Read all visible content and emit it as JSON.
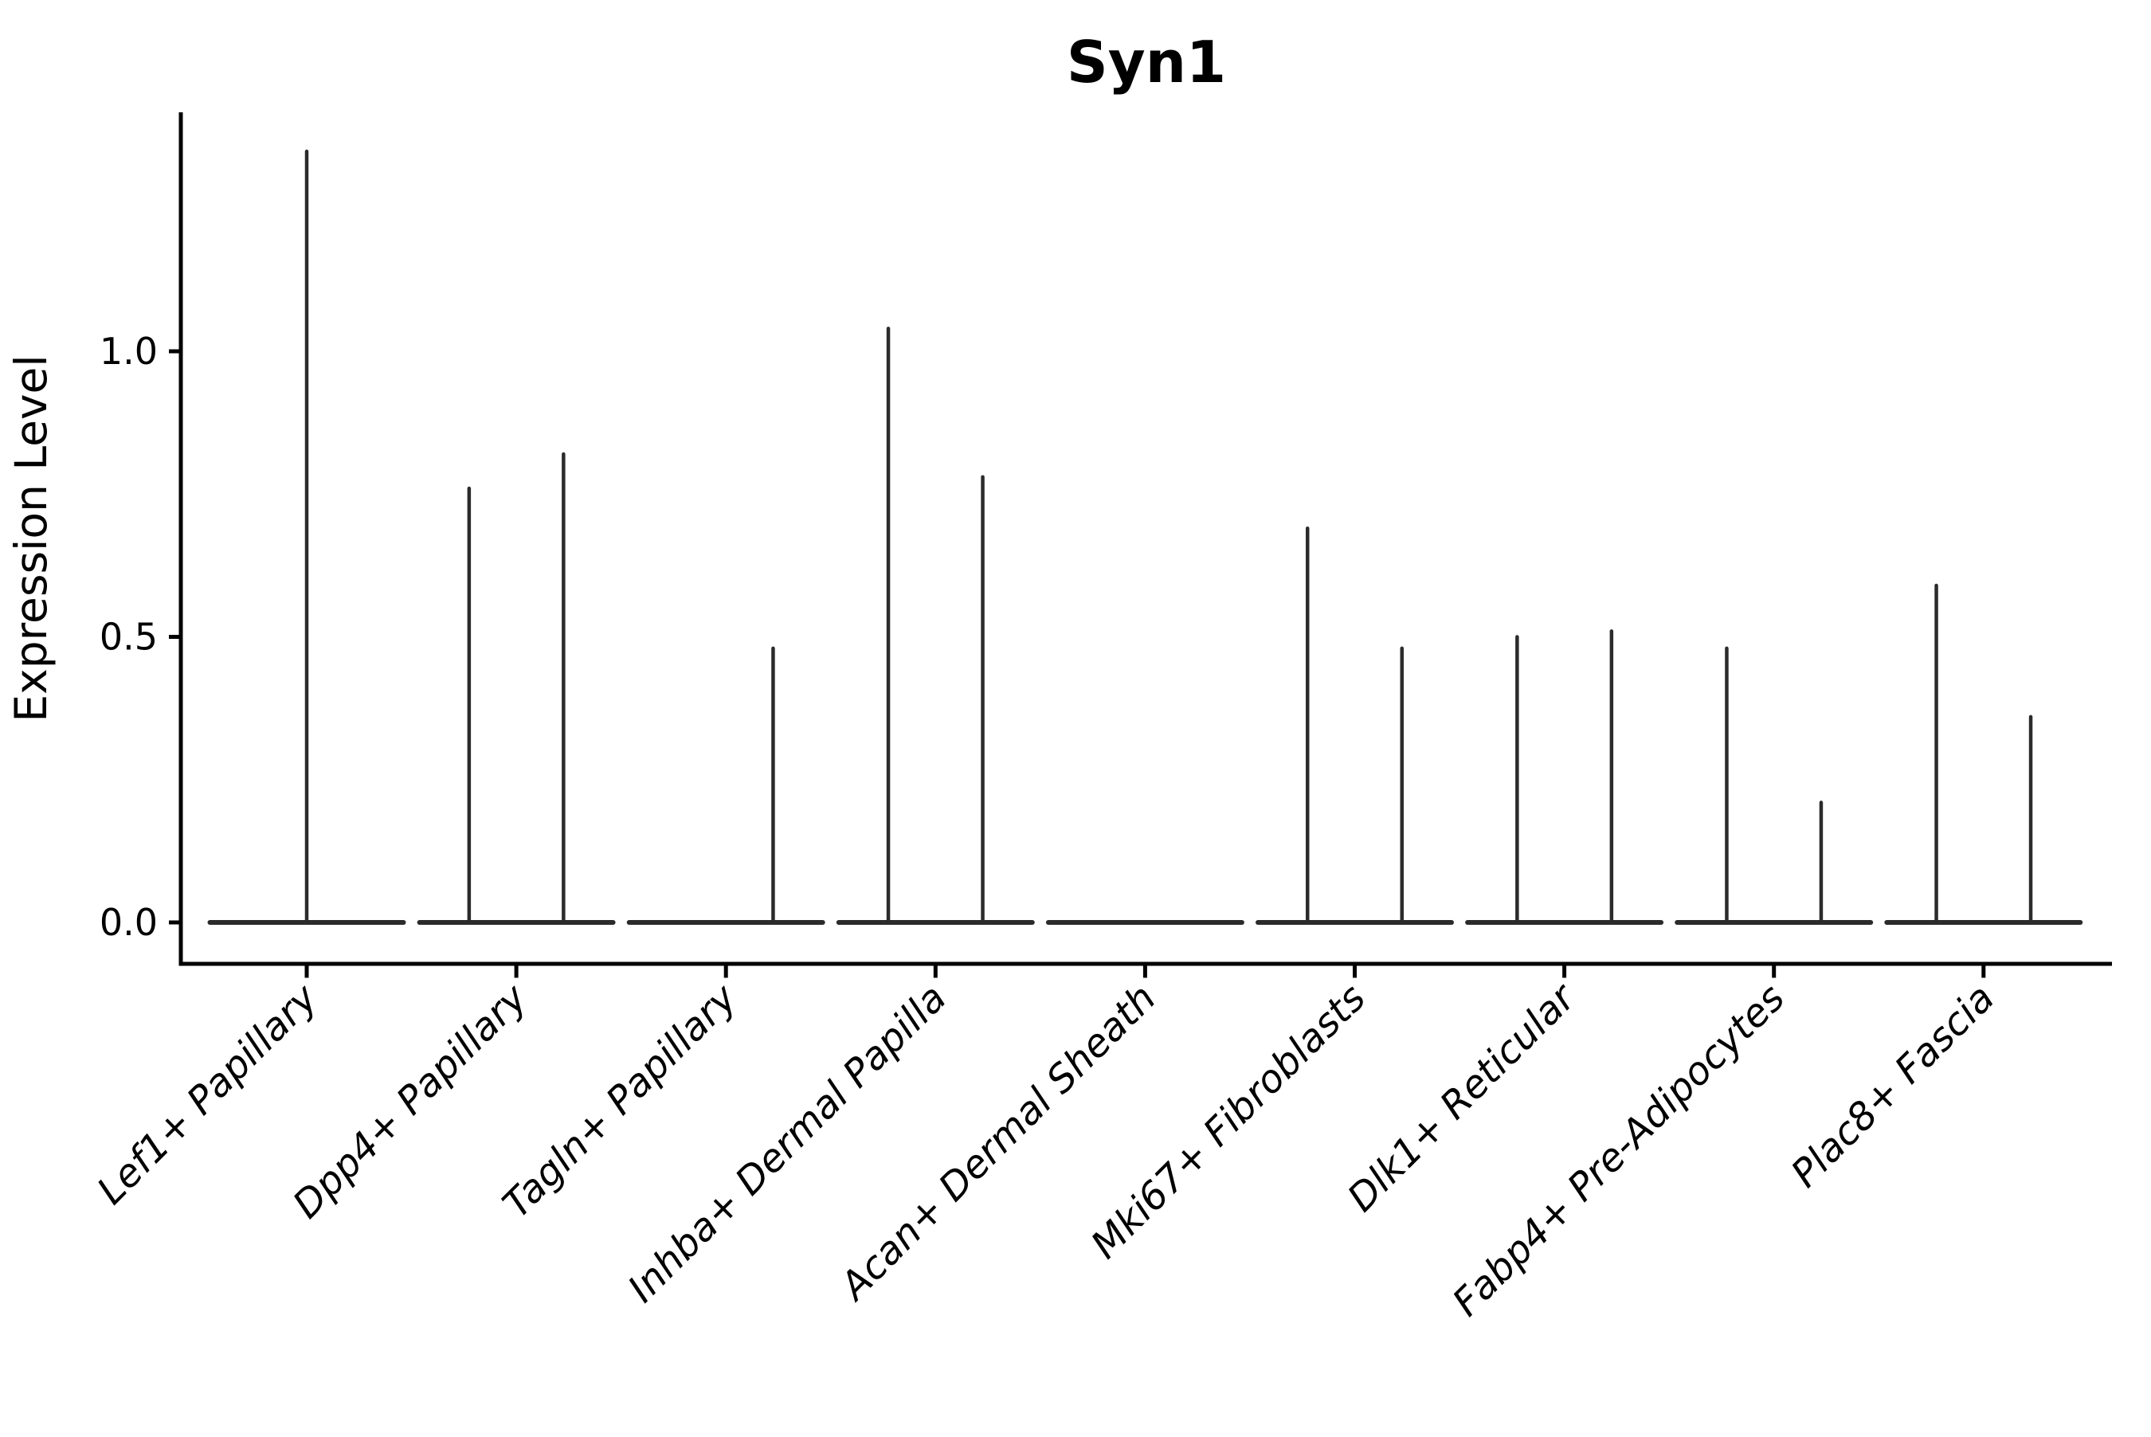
{
  "chart_data": {
    "type": "violin",
    "title": "Syn1",
    "xlabel": "",
    "ylabel": "Expression Level",
    "ylim": [
      -0.072,
      1.418
    ],
    "ytick_values": [
      0.0,
      0.5,
      1.0
    ],
    "ytick_labels": [
      "0.0",
      "0.5",
      "1.0"
    ],
    "xtick_rotation": 45,
    "legend": "none",
    "grid": false,
    "baseline_value": 0.0,
    "categories": [
      "Lef1+ Papillary",
      "Dpp4+ Papillary",
      "Tagln+ Papillary",
      "Inhba+ Dermal Papilla",
      "Acan+ Dermal Sheath",
      "Mki67+ Fibroblasts",
      "Dlk1+ Reticular",
      "Fabp4+ Pre-Adipocytes",
      "Plac8+ Fascia"
    ],
    "violins": [
      {
        "category": "Lef1+ Papillary",
        "spikes": [
          {
            "pos": 0,
            "max": 1.35
          }
        ]
      },
      {
        "category": "Dpp4+ Papillary",
        "spikes": [
          {
            "pos": -1,
            "max": 0.76
          },
          {
            "pos": 1,
            "max": 0.82
          }
        ]
      },
      {
        "category": "Tagln+ Papillary",
        "spikes": [
          {
            "pos": 1,
            "max": 0.48
          }
        ]
      },
      {
        "category": "Inhba+ Dermal Papilla",
        "spikes": [
          {
            "pos": -1,
            "max": 1.04
          },
          {
            "pos": 1,
            "max": 0.78
          }
        ]
      },
      {
        "category": "Acan+ Dermal Sheath",
        "spikes": []
      },
      {
        "category": "Mki67+ Fibroblasts",
        "spikes": [
          {
            "pos": -1,
            "max": 0.69
          },
          {
            "pos": 1,
            "max": 0.48
          }
        ]
      },
      {
        "category": "Dlk1+ Reticular",
        "spikes": [
          {
            "pos": -1,
            "max": 0.5
          },
          {
            "pos": 1,
            "max": 0.51
          }
        ]
      },
      {
        "category": "Fabp4+ Pre-Adipocytes",
        "spikes": [
          {
            "pos": -1,
            "max": 0.48
          },
          {
            "pos": 1,
            "max": 0.21
          }
        ]
      },
      {
        "category": "Plac8+ Fascia",
        "spikes": [
          {
            "pos": -1,
            "max": 0.59
          },
          {
            "pos": 1,
            "max": 0.36
          }
        ]
      }
    ],
    "colors": {
      "violin_stroke": "#2b2b2b",
      "axis": "#000000",
      "text": "#000000",
      "background": "#ffffff"
    }
  }
}
